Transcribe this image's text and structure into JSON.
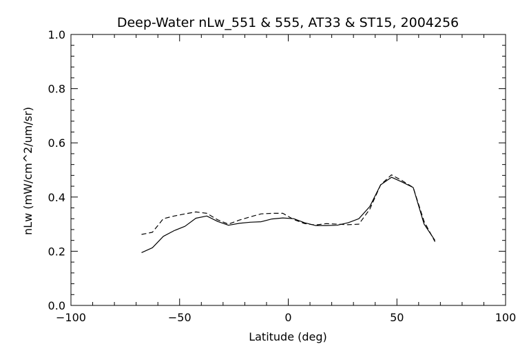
{
  "chart_data": {
    "type": "line",
    "title": "Deep-Water nLw_551 & 555, AT33 & ST15, 2004256",
    "xlabel": "Latitude (deg)",
    "ylabel": "nLw (mW/cm^2/um/sr)",
    "xlim": [
      -100,
      100
    ],
    "ylim": [
      0.0,
      1.0
    ],
    "x_ticks": [
      -100,
      -50,
      0,
      50,
      100
    ],
    "x_tick_labels": [
      "−100",
      "−50",
      "0",
      "50",
      "100"
    ],
    "y_ticks": [
      0.0,
      0.2,
      0.4,
      0.6,
      0.8,
      1.0
    ],
    "y_tick_labels": [
      "0.0",
      "0.2",
      "0.4",
      "0.6",
      "0.8",
      "1.0"
    ],
    "grid": false,
    "series": [
      {
        "style": "solid",
        "color": "#000000",
        "x": [
          -67.5,
          -62.5,
          -57.5,
          -52.5,
          -47.5,
          -42.5,
          -37.5,
          -32.5,
          -27.5,
          -22.5,
          -17.5,
          -12.5,
          -7.5,
          -2.5,
          2.5,
          7.5,
          12.5,
          17.5,
          22.5,
          27.5,
          32.5,
          37.5,
          42.5,
          47.5,
          52.5,
          57.5,
          62.5,
          67.5
        ],
        "values": [
          0.195,
          0.213,
          0.255,
          0.276,
          0.292,
          0.322,
          0.33,
          0.31,
          0.296,
          0.303,
          0.307,
          0.309,
          0.319,
          0.323,
          0.32,
          0.305,
          0.295,
          0.295,
          0.296,
          0.305,
          0.32,
          0.365,
          0.445,
          0.473,
          0.455,
          0.435,
          0.3,
          0.24
        ]
      },
      {
        "style": "dashed",
        "color": "#000000",
        "x": [
          -67.5,
          -62.5,
          -57.5,
          -52.5,
          -47.5,
          -42.5,
          -37.5,
          -32.5,
          -27.5,
          -22.5,
          -17.5,
          -12.5,
          -7.5,
          -2.5,
          2.5,
          7.5,
          12.5,
          17.5,
          22.5,
          27.5,
          32.5,
          37.5,
          42.5,
          47.5,
          52.5,
          57.5,
          62.5,
          67.5
        ],
        "values": [
          0.262,
          0.27,
          0.32,
          0.33,
          0.338,
          0.345,
          0.34,
          0.316,
          0.3,
          0.315,
          0.327,
          0.338,
          0.34,
          0.34,
          0.317,
          0.302,
          0.297,
          0.302,
          0.3,
          0.298,
          0.3,
          0.355,
          0.445,
          0.482,
          0.46,
          0.435,
          0.31,
          0.235
        ]
      }
    ]
  }
}
